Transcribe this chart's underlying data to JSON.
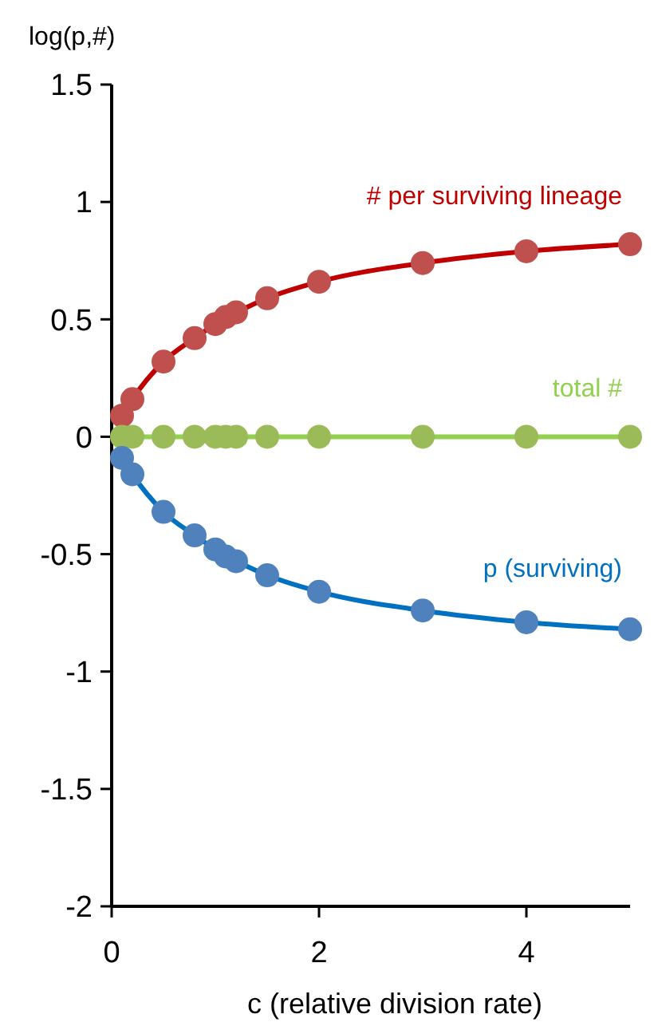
{
  "chart_data": {
    "type": "line",
    "xlabel": "c (relative division rate)",
    "ylabel": "log(p,#)",
    "x": [
      0.1,
      0.2,
      0.5,
      0.8,
      1,
      1.1,
      1.2,
      1.5,
      2,
      3,
      4,
      5
    ],
    "xlim": [
      0,
      5
    ],
    "xticks": [
      0,
      2,
      4
    ],
    "ylim": [
      -2,
      1.5
    ],
    "yticks": [
      -2,
      -1.5,
      -1,
      -0.5,
      0,
      0.5,
      1,
      1.5
    ],
    "marker": "circle",
    "line_style": "solid",
    "grid": false,
    "series": [
      {
        "name": "# per surviving lineage",
        "color": "#c0504d",
        "values": [
          0.09,
          0.16,
          0.32,
          0.42,
          0.48,
          0.51,
          0.53,
          0.59,
          0.66,
          0.74,
          0.79,
          0.82
        ]
      },
      {
        "name": "total #",
        "color": "#9bbb59",
        "values": [
          0,
          0,
          0,
          0,
          0,
          0,
          0,
          0,
          0,
          0,
          0,
          0
        ]
      },
      {
        "name": "p (surviving)",
        "color": "#4f81bd",
        "values": [
          -0.09,
          -0.16,
          -0.32,
          -0.42,
          -0.48,
          -0.51,
          -0.53,
          -0.59,
          -0.66,
          -0.74,
          -0.79,
          -0.82
        ]
      }
    ]
  }
}
